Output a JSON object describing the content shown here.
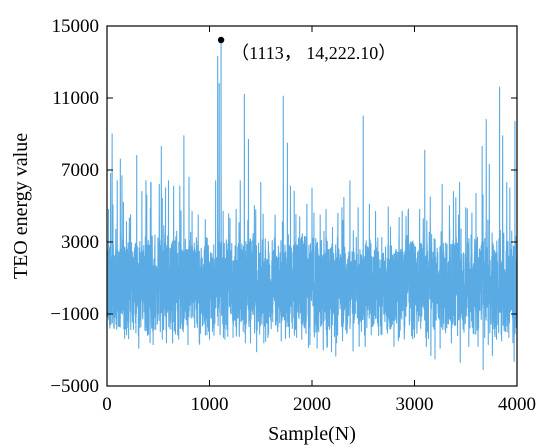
{
  "chart_data": {
    "type": "line",
    "xlabel": "Sample(N)",
    "ylabel": "TEO energy value",
    "xlim": [
      0,
      4000
    ],
    "ylim": [
      -5000,
      15000
    ],
    "xticks": [
      0,
      1000,
      2000,
      3000,
      4000
    ],
    "yticks": [
      -5000,
      -1000,
      3000,
      7000,
      11000,
      15000
    ],
    "xtick_labels": [
      "0",
      "1000",
      "2000",
      "3000",
      "4000"
    ],
    "ytick_labels": [
      "-5000",
      "-1000",
      "3000",
      "7000",
      "11000",
      "15000"
    ],
    "grid": false,
    "legend": "none",
    "line_color": "#5aabe3",
    "series": [
      {
        "num_samples": 4000,
        "highlight_peaks": [
          [
            15,
            4800
          ],
          [
            35,
            6800
          ],
          [
            50,
            9000
          ],
          [
            100,
            6400
          ],
          [
            130,
            7600
          ],
          [
            160,
            5200
          ],
          [
            230,
            4500
          ],
          [
            290,
            7800
          ],
          [
            340,
            5800
          ],
          [
            380,
            6400
          ],
          [
            430,
            6300
          ],
          [
            510,
            6200
          ],
          [
            530,
            8300
          ],
          [
            600,
            6400
          ],
          [
            650,
            6100
          ],
          [
            710,
            6100
          ],
          [
            750,
            8900
          ],
          [
            800,
            6600
          ],
          [
            830,
            4700
          ],
          [
            890,
            4500
          ],
          [
            950,
            5300
          ],
          [
            1000,
            3800
          ],
          [
            1060,
            6400
          ],
          [
            1080,
            13300
          ],
          [
            1095,
            11800
          ],
          [
            1113,
            14222.1
          ],
          [
            1150,
            4400
          ],
          [
            1200,
            4300
          ],
          [
            1260,
            4800
          ],
          [
            1300,
            6400
          ],
          [
            1340,
            11200
          ],
          [
            1380,
            8700
          ],
          [
            1450,
            4100
          ],
          [
            1500,
            6300
          ],
          [
            1570,
            6000
          ],
          [
            1640,
            4500
          ],
          [
            1700,
            8300
          ],
          [
            1720,
            11100
          ],
          [
            1760,
            8500
          ],
          [
            1790,
            6100
          ],
          [
            1880,
            4400
          ],
          [
            1950,
            5100
          ],
          [
            2000,
            6000
          ],
          [
            2080,
            4500
          ],
          [
            2200,
            3800
          ],
          [
            2300,
            4200
          ],
          [
            2370,
            6400
          ],
          [
            2400,
            6900
          ],
          [
            2450,
            4900
          ],
          [
            2500,
            10000
          ],
          [
            2560,
            5100
          ],
          [
            2620,
            4700
          ],
          [
            2700,
            6300
          ],
          [
            2760,
            3700
          ],
          [
            2800,
            5000
          ],
          [
            2880,
            4700
          ],
          [
            2950,
            10300
          ],
          [
            3000,
            5900
          ],
          [
            3050,
            4800
          ],
          [
            3100,
            8100
          ],
          [
            3200,
            5700
          ],
          [
            3270,
            6200
          ],
          [
            3300,
            10000
          ],
          [
            3380,
            5800
          ],
          [
            3440,
            6300
          ],
          [
            3500,
            4900
          ],
          [
            3560,
            4600
          ],
          [
            3600,
            5700
          ],
          [
            3660,
            8300
          ],
          [
            3700,
            9800
          ],
          [
            3730,
            7300
          ],
          [
            3760,
            9300
          ],
          [
            3800,
            5600
          ],
          [
            3830,
            11600
          ],
          [
            3860,
            8900
          ],
          [
            3900,
            6300
          ],
          [
            3930,
            6000
          ],
          [
            3980,
            9700
          ]
        ],
        "highlight_troughs": [
          [
            25,
            -1600
          ],
          [
            70,
            -1800
          ],
          [
            150,
            -1000
          ],
          [
            200,
            -1400
          ],
          [
            260,
            -900
          ],
          [
            310,
            -2900
          ],
          [
            370,
            -1900
          ],
          [
            420,
            -2600
          ],
          [
            450,
            -2700
          ],
          [
            500,
            -1000
          ],
          [
            540,
            -2400
          ],
          [
            580,
            -2600
          ],
          [
            640,
            -2600
          ],
          [
            700,
            -2400
          ],
          [
            730,
            -1500
          ],
          [
            790,
            -2700
          ],
          [
            840,
            -1200
          ],
          [
            900,
            -2600
          ],
          [
            950,
            -1300
          ],
          [
            1000,
            -2400
          ],
          [
            1100,
            -900
          ],
          [
            1150,
            -2400
          ],
          [
            1230,
            -2300
          ],
          [
            1290,
            -2000
          ],
          [
            1350,
            -2600
          ],
          [
            1400,
            -2600
          ],
          [
            1460,
            -3100
          ],
          [
            1530,
            -2600
          ],
          [
            1570,
            -2300
          ],
          [
            1650,
            -1600
          ],
          [
            1700,
            -2500
          ],
          [
            1780,
            -2300
          ],
          [
            1850,
            -2300
          ],
          [
            1900,
            -2400
          ],
          [
            1980,
            -2700
          ],
          [
            2050,
            -2900
          ],
          [
            2110,
            -3000
          ],
          [
            2150,
            -2800
          ],
          [
            2190,
            -3100
          ],
          [
            2240,
            -2600
          ],
          [
            2290,
            -1700
          ],
          [
            2340,
            -2100
          ],
          [
            2400,
            -2300
          ],
          [
            2460,
            -2800
          ],
          [
            2520,
            -2200
          ],
          [
            2590,
            -1700
          ],
          [
            2650,
            -2200
          ],
          [
            2700,
            -1000
          ],
          [
            2760,
            -1800
          ],
          [
            2800,
            -2800
          ],
          [
            2860,
            -1900
          ],
          [
            2900,
            -2400
          ],
          [
            2950,
            -1600
          ],
          [
            3000,
            -2300
          ],
          [
            3060,
            -1800
          ],
          [
            3110,
            -2300
          ],
          [
            3160,
            -3300
          ],
          [
            3200,
            -3500
          ],
          [
            3250,
            -2900
          ],
          [
            3300,
            -1900
          ],
          [
            3360,
            -2600
          ],
          [
            3420,
            -2200
          ],
          [
            3480,
            -1400
          ],
          [
            3530,
            -2800
          ],
          [
            3580,
            -2100
          ],
          [
            3620,
            -2800
          ],
          [
            3670,
            -4100
          ],
          [
            3720,
            -2700
          ],
          [
            3760,
            -3300
          ],
          [
            3800,
            -2400
          ],
          [
            3850,
            -2500
          ],
          [
            3880,
            -1600
          ],
          [
            3920,
            -2300
          ],
          [
            3960,
            -2600
          ],
          [
            3990,
            -1400
          ]
        ]
      }
    ],
    "annotations": [
      {
        "x": 1113,
        "y": 14222.1,
        "text": "（1113，  14,222.10）"
      }
    ]
  }
}
